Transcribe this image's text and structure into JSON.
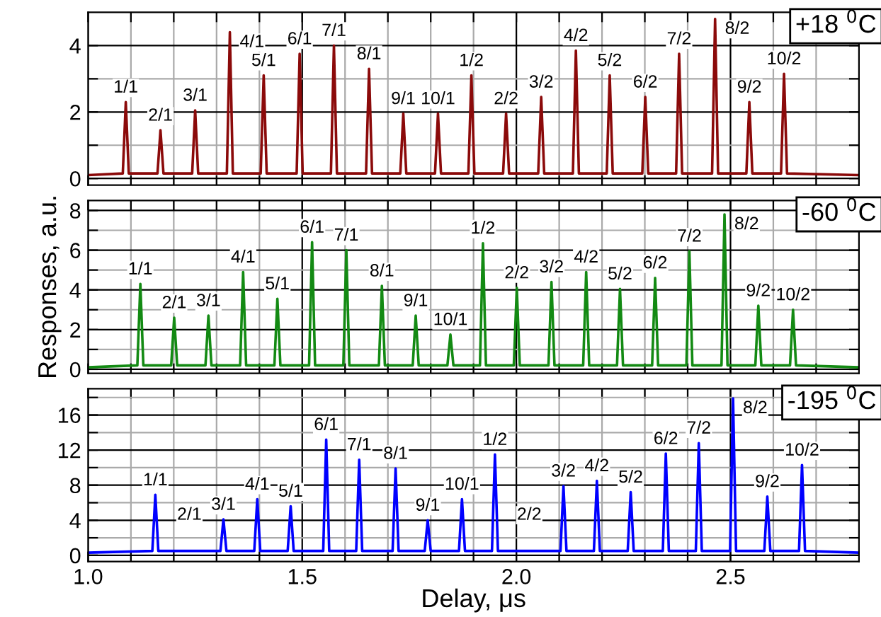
{
  "chart_data": [
    {
      "type": "line",
      "xlim": [
        1.0,
        2.8
      ],
      "ylim": [
        -0.2,
        5.0
      ],
      "grid": true,
      "tick_labels": "y",
      "xticks": [
        1.0,
        {
          "value": 1.1,
          "label": null
        },
        {
          "value": 1.2,
          "label": null
        },
        {
          "value": 1.3,
          "label": null
        },
        {
          "value": 1.4,
          "label": null
        },
        1.5,
        {
          "value": 1.6,
          "label": null
        },
        {
          "value": 1.7,
          "label": null
        },
        {
          "value": 1.8,
          "label": null
        },
        {
          "value": 1.9,
          "label": null
        },
        2.0,
        {
          "value": 2.1,
          "label": null
        },
        {
          "value": 2.2,
          "label": null
        },
        {
          "value": 2.3,
          "label": null
        },
        {
          "value": 2.4,
          "label": null
        },
        2.5,
        {
          "value": 2.6,
          "label": null
        },
        {
          "value": 2.7,
          "label": null
        }
      ],
      "yticks": [
        0,
        {
          "value": 1,
          "label": null
        },
        2,
        {
          "value": 3,
          "label": null
        },
        4
      ],
      "series": [
        {
          "color": "#8b0a0a",
          "x": [
            1.0,
            1.081,
            1.088,
            1.095,
            1.162,
            1.169,
            1.176,
            1.243,
            1.25,
            1.257,
            1.324,
            1.331,
            1.338,
            1.403,
            1.41,
            1.417,
            1.487,
            1.494,
            1.501,
            1.567,
            1.574,
            1.581,
            1.649,
            1.656,
            1.663,
            1.729,
            1.736,
            1.743,
            1.81,
            1.817,
            1.824,
            1.888,
            1.895,
            1.902,
            1.969,
            1.976,
            1.983,
            2.051,
            2.058,
            2.065,
            2.132,
            2.139,
            2.146,
            2.211,
            2.218,
            2.225,
            2.294,
            2.301,
            2.308,
            2.373,
            2.38,
            2.387,
            2.457,
            2.464,
            2.471,
            2.537,
            2.544,
            2.551,
            2.618,
            2.625,
            2.632,
            2.8
          ],
          "values": [
            0.1,
            0.15,
            2.3,
            0.15,
            0.15,
            1.45,
            0.15,
            0.15,
            2.05,
            0.15,
            0.15,
            4.4,
            0.15,
            0.15,
            3.1,
            0.15,
            0.15,
            3.75,
            0.15,
            0.15,
            4.0,
            0.15,
            0.15,
            3.3,
            0.15,
            0.15,
            1.95,
            0.15,
            0.15,
            1.95,
            0.15,
            0.15,
            3.1,
            0.15,
            0.15,
            1.95,
            0.15,
            0.15,
            2.45,
            0.15,
            0.15,
            3.85,
            0.15,
            0.15,
            3.1,
            0.15,
            0.15,
            2.45,
            0.15,
            0.15,
            3.75,
            0.15,
            0.15,
            4.8,
            0.15,
            0.15,
            2.3,
            0.15,
            0.15,
            3.15,
            0.15,
            0.1
          ]
        }
      ],
      "annotations": [
        "+18 $^{0}$C",
        {
          "text": "1/1",
          "x": 1.088,
          "y": 2.3
        },
        {
          "text": "2/1",
          "x": 1.169,
          "y": 1.45
        },
        {
          "text": "3/1",
          "x": 1.25,
          "y": 2.05
        },
        {
          "text": "4/1",
          "x": 1.331,
          "y": 4.4
        },
        {
          "text": "5/1",
          "x": 1.41,
          "y": 3.1
        },
        {
          "text": "6/1",
          "x": 1.494,
          "y": 3.75
        },
        {
          "text": "7/1",
          "x": 1.574,
          "y": 4.0
        },
        {
          "text": "8/1",
          "x": 1.656,
          "y": 3.3
        },
        {
          "text": "9/1",
          "x": 1.736,
          "y": 1.95
        },
        {
          "text": "10/1",
          "x": 1.817,
          "y": 1.95
        },
        {
          "text": "1/2",
          "x": 1.895,
          "y": 3.1
        },
        {
          "text": "2/2",
          "x": 1.976,
          "y": 1.95
        },
        {
          "text": "3/2",
          "x": 2.058,
          "y": 2.45
        },
        {
          "text": "4/2",
          "x": 2.139,
          "y": 3.85
        },
        {
          "text": "5/2",
          "x": 2.218,
          "y": 3.1
        },
        {
          "text": "6/2",
          "x": 2.301,
          "y": 2.45
        },
        {
          "text": "7/2",
          "x": 2.38,
          "y": 3.75
        },
        {
          "text": "8/2",
          "x": 2.464,
          "y": 4.8
        },
        {
          "text": "9/2",
          "x": 2.544,
          "y": 2.3
        },
        {
          "text": "10/2",
          "x": 2.625,
          "y": 3.15
        }
      ]
    },
    {
      "type": "line",
      "xlim": [
        1.0,
        2.8
      ],
      "ylim": [
        -0.2,
        8.5
      ],
      "grid": true,
      "tick_labels": "y",
      "ylabel": "Responses, a.u.",
      "xticks": [
        1.0,
        {
          "value": 1.1,
          "label": null
        },
        {
          "value": 1.2,
          "label": null
        },
        {
          "value": 1.3,
          "label": null
        },
        {
          "value": 1.4,
          "label": null
        },
        1.5,
        {
          "value": 1.6,
          "label": null
        },
        {
          "value": 1.7,
          "label": null
        },
        {
          "value": 1.8,
          "label": null
        },
        {
          "value": 1.9,
          "label": null
        },
        2.0,
        {
          "value": 2.1,
          "label": null
        },
        {
          "value": 2.2,
          "label": null
        },
        {
          "value": 2.3,
          "label": null
        },
        {
          "value": 2.4,
          "label": null
        },
        2.5,
        {
          "value": 2.6,
          "label": null
        },
        {
          "value": 2.7,
          "label": null
        }
      ],
      "yticks": [
        0,
        {
          "value": 1,
          "label": null
        },
        2,
        {
          "value": 3,
          "label": null
        },
        4,
        {
          "value": 5,
          "label": null
        },
        6,
        {
          "value": 7,
          "label": null
        },
        8
      ],
      "series": [
        {
          "color": "#138a13",
          "x": [
            1.0,
            1.115,
            1.122,
            1.129,
            1.194,
            1.201,
            1.208,
            1.274,
            1.281,
            1.288,
            1.355,
            1.362,
            1.369,
            1.435,
            1.442,
            1.449,
            1.516,
            1.523,
            1.53,
            1.596,
            1.603,
            1.61,
            1.679,
            1.686,
            1.693,
            1.758,
            1.765,
            1.772,
            1.839,
            1.846,
            1.853,
            1.915,
            1.922,
            1.929,
            1.994,
            2.001,
            2.008,
            2.075,
            2.082,
            2.089,
            2.156,
            2.163,
            2.17,
            2.235,
            2.242,
            2.249,
            2.317,
            2.324,
            2.331,
            2.397,
            2.404,
            2.411,
            2.479,
            2.486,
            2.493,
            2.558,
            2.565,
            2.572,
            2.639,
            2.646,
            2.653,
            2.8
          ],
          "values": [
            0.1,
            0.2,
            4.3,
            0.2,
            0.2,
            2.6,
            0.2,
            0.2,
            2.7,
            0.2,
            0.2,
            4.9,
            0.2,
            0.2,
            3.55,
            0.2,
            0.2,
            6.4,
            0.2,
            0.2,
            6.0,
            0.2,
            0.2,
            4.2,
            0.2,
            0.2,
            2.7,
            0.2,
            0.2,
            1.75,
            0.2,
            0.2,
            6.35,
            0.2,
            0.2,
            4.1,
            0.2,
            0.2,
            4.4,
            0.2,
            0.2,
            4.9,
            0.2,
            0.2,
            4.05,
            0.2,
            0.2,
            4.6,
            0.2,
            0.2,
            5.95,
            0.2,
            0.2,
            7.8,
            0.2,
            0.2,
            3.2,
            0.2,
            0.2,
            3.0,
            0.2,
            0.1
          ]
        }
      ],
      "annotations": [
        "-60 $^{0}$C",
        {
          "text": "1/1",
          "x": 1.122,
          "y": 4.3
        },
        {
          "text": "2/1",
          "x": 1.201,
          "y": 2.6
        },
        {
          "text": "3/1",
          "x": 1.281,
          "y": 2.7
        },
        {
          "text": "4/1",
          "x": 1.362,
          "y": 4.9
        },
        {
          "text": "5/1",
          "x": 1.442,
          "y": 3.55
        },
        {
          "text": "6/1",
          "x": 1.523,
          "y": 6.4
        },
        {
          "text": "7/1",
          "x": 1.603,
          "y": 6.0
        },
        {
          "text": "8/1",
          "x": 1.686,
          "y": 4.2
        },
        {
          "text": "9/1",
          "x": 1.765,
          "y": 2.7
        },
        {
          "text": "10/1",
          "x": 1.846,
          "y": 1.75
        },
        {
          "text": "1/2",
          "x": 1.922,
          "y": 6.35
        },
        {
          "text": "2/2",
          "x": 2.001,
          "y": 4.1
        },
        {
          "text": "3/2",
          "x": 2.082,
          "y": 4.4
        },
        {
          "text": "4/2",
          "x": 2.163,
          "y": 4.9
        },
        {
          "text": "5/2",
          "x": 2.242,
          "y": 4.05
        },
        {
          "text": "6/2",
          "x": 2.324,
          "y": 4.6
        },
        {
          "text": "7/2",
          "x": 2.404,
          "y": 5.95
        },
        {
          "text": "8/2",
          "x": 2.486,
          "y": 7.8
        },
        {
          "text": "9/2",
          "x": 2.565,
          "y": 3.2
        },
        {
          "text": "10/2",
          "x": 2.646,
          "y": 3.0
        }
      ]
    },
    {
      "type": "line",
      "xlim": [
        1.0,
        2.8
      ],
      "ylim": [
        -0.7,
        19.0
      ],
      "grid": true,
      "xlabel": "Delay, μs",
      "xticks": [
        {
          "value": 1.0,
          "label": "1.0"
        },
        {
          "value": 1.1,
          "label": null
        },
        {
          "value": 1.2,
          "label": null
        },
        {
          "value": 1.3,
          "label": null
        },
        {
          "value": 1.4,
          "label": null
        },
        {
          "value": 1.5,
          "label": "1.5"
        },
        {
          "value": 1.6,
          "label": null
        },
        {
          "value": 1.7,
          "label": null
        },
        {
          "value": 1.8,
          "label": null
        },
        {
          "value": 1.9,
          "label": null
        },
        {
          "value": 2.0,
          "label": "2.0"
        },
        {
          "value": 2.1,
          "label": null
        },
        {
          "value": 2.2,
          "label": null
        },
        {
          "value": 2.3,
          "label": null
        },
        {
          "value": 2.4,
          "label": null
        },
        {
          "value": 2.5,
          "label": "2.5"
        },
        {
          "value": 2.6,
          "label": null
        },
        {
          "value": 2.7,
          "label": null
        }
      ],
      "yticks": [
        0,
        {
          "value": 2,
          "label": null
        },
        4,
        {
          "value": 6,
          "label": null
        },
        8,
        {
          "value": 10,
          "label": null
        },
        12,
        {
          "value": 14,
          "label": null
        },
        16,
        {
          "value": 18,
          "label": null
        }
      ],
      "series": [
        {
          "color": "#0000ff",
          "x": [
            1.0,
            1.15,
            1.157,
            1.164,
            1.309,
            1.316,
            1.323,
            1.388,
            1.395,
            1.402,
            1.466,
            1.473,
            1.48,
            1.549,
            1.556,
            1.563,
            1.626,
            1.633,
            1.64,
            1.711,
            1.718,
            1.725,
            1.786,
            1.793,
            1.8,
            1.866,
            1.873,
            1.88,
            1.943,
            1.95,
            1.957,
            2.103,
            2.11,
            2.117,
            2.181,
            2.188,
            2.195,
            2.26,
            2.267,
            2.274,
            2.342,
            2.349,
            2.356,
            2.419,
            2.426,
            2.433,
            2.499,
            2.506,
            2.513,
            2.579,
            2.586,
            2.593,
            2.66,
            2.667,
            2.674,
            2.8
          ],
          "values": [
            0.3,
            0.5,
            6.9,
            0.5,
            0.5,
            4.1,
            0.5,
            0.5,
            6.4,
            0.5,
            0.5,
            5.6,
            0.5,
            0.5,
            13.2,
            0.5,
            0.5,
            10.9,
            0.5,
            0.5,
            9.9,
            0.5,
            0.5,
            4.0,
            0.5,
            0.5,
            6.4,
            0.5,
            0.5,
            11.5,
            0.5,
            0.5,
            7.9,
            0.5,
            0.5,
            8.5,
            0.5,
            0.5,
            7.2,
            0.5,
            0.5,
            11.6,
            0.5,
            0.5,
            12.8,
            0.5,
            0.5,
            17.9,
            0.5,
            0.5,
            6.7,
            0.5,
            0.5,
            10.3,
            0.5,
            0.3
          ]
        }
      ],
      "annotations": [
        "-195 $^{0}$C",
        {
          "text": "1/1",
          "x": 1.157,
          "y": 6.9
        },
        "2/1",
        {
          "text": "3/1",
          "x": 1.316,
          "y": 4.1
        },
        {
          "text": "4/1",
          "x": 1.395,
          "y": 6.4
        },
        {
          "text": "5/1",
          "x": 1.473,
          "y": 5.6
        },
        {
          "text": "6/1",
          "x": 1.556,
          "y": 13.2
        },
        {
          "text": "7/1",
          "x": 1.633,
          "y": 10.9
        },
        {
          "text": "8/1",
          "x": 1.718,
          "y": 9.9
        },
        {
          "text": "9/1",
          "x": 1.793,
          "y": 4.0
        },
        {
          "text": "10/1",
          "x": 1.873,
          "y": 6.4
        },
        {
          "text": "1/2",
          "x": 1.95,
          "y": 11.5
        },
        "2/2",
        {
          "text": "3/2",
          "x": 2.11,
          "y": 7.9
        },
        {
          "text": "4/2",
          "x": 2.188,
          "y": 8.5
        },
        {
          "text": "5/2",
          "x": 2.267,
          "y": 7.2
        },
        {
          "text": "6/2",
          "x": 2.349,
          "y": 11.6
        },
        {
          "text": "7/2",
          "x": 2.426,
          "y": 12.8
        },
        {
          "text": "8/2",
          "x": 2.506,
          "y": 17.9
        },
        {
          "text": "9/2",
          "x": 2.586,
          "y": 6.7
        },
        {
          "text": "10/2",
          "x": 2.667,
          "y": 10.3
        }
      ]
    }
  ]
}
